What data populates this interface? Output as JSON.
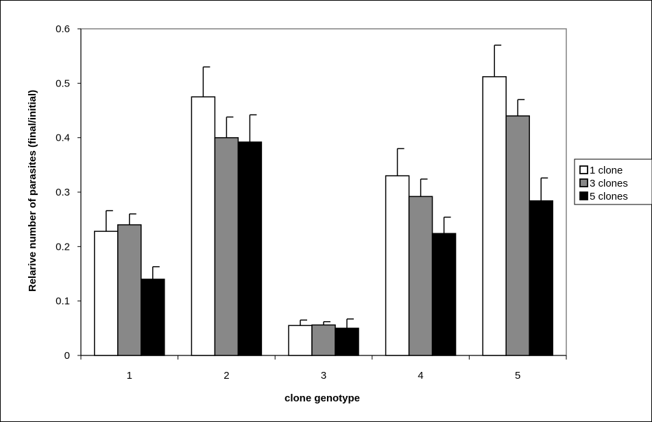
{
  "chart_data": {
    "type": "bar",
    "title": "",
    "xlabel": "clone genotype",
    "ylabel": "Relarive number of parasites (final/initial)",
    "categories": [
      "1",
      "2",
      "3",
      "4",
      "5"
    ],
    "ylim": [
      0,
      0.6
    ],
    "yticks": [
      "0",
      "0.1",
      "0.2",
      "0.3",
      "0.4",
      "0.5",
      "0.6"
    ],
    "grid": false,
    "legend_position": "right",
    "series": [
      {
        "name": "1 clone",
        "color": "#ffffff",
        "values": [
          0.228,
          0.475,
          0.055,
          0.33,
          0.512
        ],
        "errors": [
          0.038,
          0.055,
          0.01,
          0.05,
          0.058
        ]
      },
      {
        "name": "3 clones",
        "color": "#888888",
        "values": [
          0.24,
          0.4,
          0.056,
          0.292,
          0.44
        ],
        "errors": [
          0.02,
          0.038,
          0.006,
          0.032,
          0.03
        ]
      },
      {
        "name": "5 clones",
        "color": "#000000",
        "values": [
          0.14,
          0.392,
          0.05,
          0.224,
          0.284
        ],
        "errors": [
          0.023,
          0.05,
          0.017,
          0.03,
          0.042
        ]
      }
    ]
  }
}
